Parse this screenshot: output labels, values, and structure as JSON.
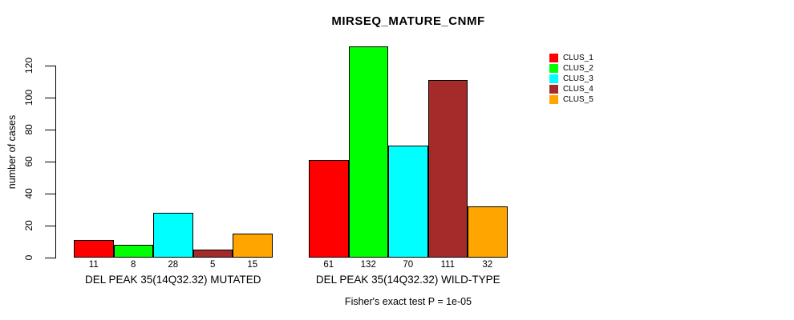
{
  "chart_data": {
    "type": "bar",
    "title": "MIRSEQ_MATURE_CNMF",
    "ylabel": "number of cases",
    "xlabel": "",
    "caption": "Fisher's exact test P = 1e-05",
    "ylim": [
      0,
      132
    ],
    "yticks": [
      0,
      20,
      40,
      60,
      80,
      100,
      120
    ],
    "grid": false,
    "legend_position": "top-right",
    "bar_value_labels_shown": true,
    "categories": [
      "DEL PEAK 35(14Q32.32) MUTATED",
      "DEL PEAK 35(14Q32.32) WILD-TYPE"
    ],
    "series": [
      {
        "name": "CLUS_1",
        "color": "#FF0000",
        "values": [
          11,
          61
        ]
      },
      {
        "name": "CLUS_2",
        "color": "#00FF00",
        "values": [
          8,
          132
        ]
      },
      {
        "name": "CLUS_3",
        "color": "#00FFFF",
        "values": [
          28,
          70
        ]
      },
      {
        "name": "CLUS_4",
        "color": "#A52A2A",
        "values": [
          5,
          111
        ]
      },
      {
        "name": "CLUS_5",
        "color": "#FFA500",
        "values": [
          15,
          32
        ]
      }
    ]
  },
  "colors": {
    "background": "#FFFFFF",
    "axis": "#000000",
    "text": "#000000"
  }
}
